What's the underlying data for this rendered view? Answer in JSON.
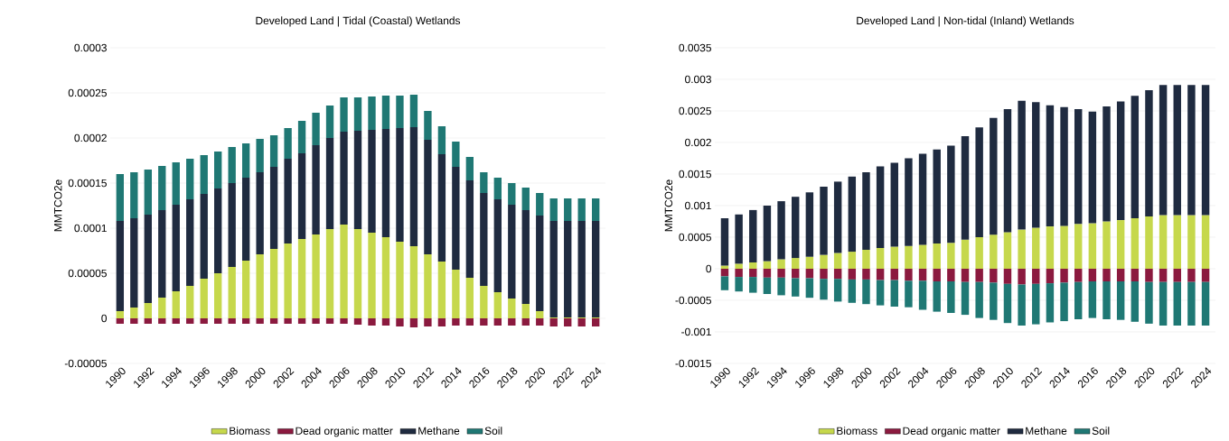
{
  "chart_data": [
    {
      "type": "bar",
      "stacked": true,
      "title": "Developed Land  |  Tidal (Coastal) Wetlands",
      "ylabel": "MMTCO2e",
      "categories": [
        "1990",
        null,
        "1992",
        null,
        "1994",
        null,
        "1996",
        null,
        "1998",
        null,
        "2000",
        null,
        "2002",
        null,
        "2004",
        null,
        "2006",
        null,
        "2008",
        null,
        "2010",
        null,
        "2012",
        null,
        "2014",
        null,
        "2016",
        null,
        "2018",
        null,
        "2020",
        null,
        "2022",
        null,
        "2024"
      ],
      "series": [
        {
          "name": "Biomass",
          "color": "#c6d84c",
          "values": [
            8e-06,
            1.2e-05,
            1.7e-05,
            2.3e-05,
            3e-05,
            3.6e-05,
            4.4e-05,
            5e-05,
            5.7e-05,
            6.4e-05,
            7.1e-05,
            7.7e-05,
            8.3e-05,
            8.8e-05,
            9.3e-05,
            9.9e-05,
            0.000104,
            9.9e-05,
            9.5e-05,
            9e-05,
            8.5e-05,
            8e-05,
            7.1e-05,
            6.3e-05,
            5.4e-05,
            4.5e-05,
            3.6e-05,
            2.9e-05,
            2.2e-05,
            1.6e-05,
            8e-06,
            1e-06,
            1e-06,
            1e-06,
            1e-06
          ]
        },
        {
          "name": "Dead organic matter",
          "color": "#8b1a3f",
          "values": [
            -6e-06,
            -6e-06,
            -6e-06,
            -6e-06,
            -6e-06,
            -6e-06,
            -6e-06,
            -6e-06,
            -6e-06,
            -6e-06,
            -6e-06,
            -6e-06,
            -6e-06,
            -6e-06,
            -6e-06,
            -6e-06,
            -6e-06,
            -7e-06,
            -8e-06,
            -8e-06,
            -9e-06,
            -1e-05,
            -9e-06,
            -9e-06,
            -8e-06,
            -8e-06,
            -8e-06,
            -8e-06,
            -8e-06,
            -8e-06,
            -8e-06,
            -9e-06,
            -9e-06,
            -9e-06,
            -9e-06
          ]
        },
        {
          "name": "Methane",
          "color": "#1f2b40",
          "values": [
            0.0001,
            9.9e-05,
            9.8e-05,
            9.7e-05,
            9.6e-05,
            9.6e-05,
            9.4e-05,
            9.4e-05,
            9.3e-05,
            9.2e-05,
            9.1e-05,
            9.1e-05,
            9.4e-05,
            9.5e-05,
            9.9e-05,
            0.000101,
            0.000103,
            0.000109,
            0.000114,
            0.00012,
            0.000126,
            0.000132,
            0.000127,
            0.000119,
            0.000114,
            0.000108,
            0.000103,
            0.000103,
            0.000104,
            0.000104,
            0.000106,
            0.000107,
            0.000107,
            0.000107,
            0.000107
          ]
        },
        {
          "name": "Soil",
          "color": "#1f7874",
          "values": [
            5.2e-05,
            5.1e-05,
            5e-05,
            4.9e-05,
            4.7e-05,
            4.5e-05,
            4.3e-05,
            4.1e-05,
            4e-05,
            3.8e-05,
            3.7e-05,
            3.5e-05,
            3.4e-05,
            3.6e-05,
            3.6e-05,
            3.6e-05,
            3.8e-05,
            3.7e-05,
            3.7e-05,
            3.7e-05,
            3.6e-05,
            3.6e-05,
            3.2e-05,
            3.1e-05,
            2.8e-05,
            2.6e-05,
            2.3e-05,
            2.4e-05,
            2.4e-05,
            2.5e-05,
            2.5e-05,
            2.5e-05,
            2.5e-05,
            2.5e-05,
            2.5e-05
          ]
        }
      ],
      "ylim": [
        -5e-05,
        0.0003
      ],
      "yticks": [
        {
          "value": -5e-05,
          "label": "-0.00005"
        },
        {
          "value": 0,
          "label": "0"
        },
        {
          "value": 5e-05,
          "label": "0.00005"
        },
        {
          "value": 0.0001,
          "label": "0.0001"
        },
        {
          "value": 0.00015,
          "label": "0.00015"
        },
        {
          "value": 0.0002,
          "label": "0.0002"
        },
        {
          "value": 0.00025,
          "label": "0.00025"
        },
        {
          "value": 0.0003,
          "label": "0.0003"
        }
      ],
      "grid": "y",
      "legend": "bottom"
    },
    {
      "type": "bar",
      "stacked": true,
      "title": "Developed Land | Non-tidal (Inland) Wetlands",
      "ylabel": "MMTCO2e",
      "categories": [
        "1990",
        null,
        "1992",
        null,
        "1994",
        null,
        "1996",
        null,
        "1998",
        null,
        "2000",
        null,
        "2002",
        null,
        "2004",
        null,
        "2006",
        null,
        "2008",
        null,
        "2010",
        null,
        "2012",
        null,
        "2014",
        null,
        "2016",
        null,
        "2018",
        null,
        "2020",
        null,
        "2022",
        null,
        "2024"
      ],
      "series": [
        {
          "name": "Biomass",
          "color": "#c6d84c",
          "values": [
            5e-05,
            8e-05,
            0.0001,
            0.00012,
            0.00015,
            0.00017,
            0.00019,
            0.00022,
            0.00025,
            0.00027,
            0.0003,
            0.00033,
            0.00035,
            0.00036,
            0.00038,
            0.0004,
            0.00041,
            0.00046,
            0.0005,
            0.00054,
            0.00058,
            0.00062,
            0.00065,
            0.00067,
            0.00068,
            0.00071,
            0.00072,
            0.00075,
            0.00077,
            0.0008,
            0.00083,
            0.00085,
            0.00085,
            0.00085,
            0.00085
          ]
        },
        {
          "name": "Dead organic matter",
          "color": "#8b1a3f",
          "values": [
            -0.00012,
            -0.00013,
            -0.00013,
            -0.00014,
            -0.00014,
            -0.00015,
            -0.00015,
            -0.00016,
            -0.00016,
            -0.00017,
            -0.00017,
            -0.00018,
            -0.00018,
            -0.00019,
            -0.00019,
            -0.0002,
            -0.0002,
            -0.00021,
            -0.00021,
            -0.00022,
            -0.00024,
            -0.00025,
            -0.00024,
            -0.00023,
            -0.00022,
            -0.00021,
            -0.0002,
            -0.0002,
            -0.0002,
            -0.0002,
            -0.00021,
            -0.00021,
            -0.00021,
            -0.00021,
            -0.00021
          ]
        },
        {
          "name": "Methane",
          "color": "#1f2b40",
          "values": [
            0.00075,
            0.00078,
            0.00083,
            0.00088,
            0.00092,
            0.00097,
            0.00102,
            0.00108,
            0.00113,
            0.00119,
            0.00123,
            0.00129,
            0.00133,
            0.00139,
            0.00144,
            0.00149,
            0.00154,
            0.00164,
            0.00174,
            0.00185,
            0.00195,
            0.00204,
            0.00199,
            0.00192,
            0.00188,
            0.00182,
            0.00177,
            0.00182,
            0.00188,
            0.00194,
            0.002,
            0.00206,
            0.00206,
            0.00206,
            0.00206
          ]
        },
        {
          "name": "Soil",
          "color": "#1f7874",
          "values": [
            -0.00022,
            -0.00023,
            -0.00025,
            -0.00026,
            -0.00028,
            -0.00029,
            -0.00031,
            -0.00033,
            -0.00036,
            -0.00037,
            -0.00039,
            -0.0004,
            -0.00042,
            -0.00042,
            -0.00046,
            -0.00048,
            -0.0005,
            -0.00052,
            -0.00057,
            -0.00059,
            -0.00062,
            -0.00065,
            -0.00064,
            -0.00062,
            -0.00061,
            -0.00059,
            -0.00058,
            -0.0006,
            -0.00061,
            -0.00064,
            -0.00066,
            -0.00069,
            -0.00069,
            -0.00069,
            -0.00069
          ]
        }
      ],
      "ylim": [
        -0.0015,
        0.0035
      ],
      "yticks": [
        {
          "value": -0.0015,
          "label": "-0.0015"
        },
        {
          "value": -0.001,
          "label": "-0.001"
        },
        {
          "value": -0.0005,
          "label": "-0.0005"
        },
        {
          "value": 0,
          "label": "0"
        },
        {
          "value": 0.0005,
          "label": "0.0005"
        },
        {
          "value": 0.001,
          "label": "0.001"
        },
        {
          "value": 0.0015,
          "label": "0.0015"
        },
        {
          "value": 0.002,
          "label": "0.002"
        },
        {
          "value": 0.0025,
          "label": "0.0025"
        },
        {
          "value": 0.003,
          "label": "0.003"
        },
        {
          "value": 0.0035,
          "label": "0.0035"
        }
      ],
      "grid": "y",
      "legend": "bottom"
    }
  ]
}
